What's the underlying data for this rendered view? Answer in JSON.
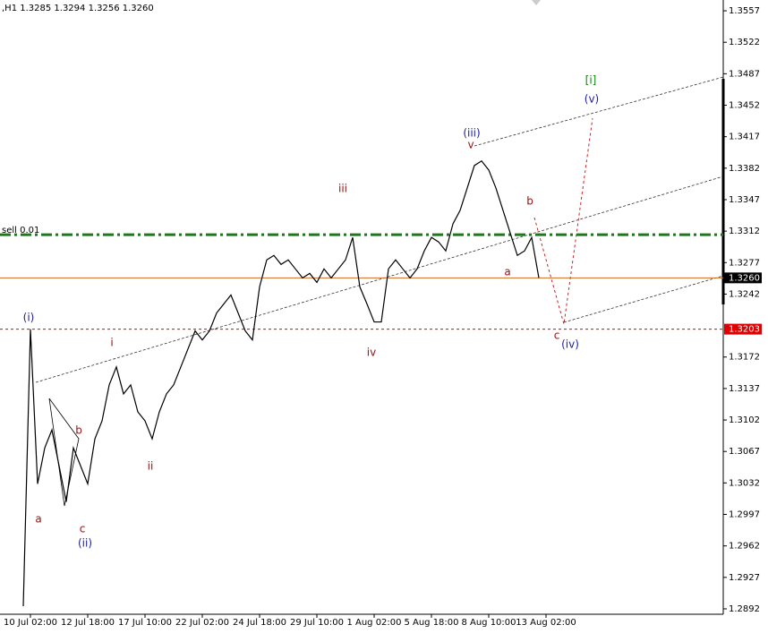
{
  "chart_data": {
    "type": "line",
    "header": ",H1  1.3285 1.3294 1.3256 1.3260",
    "categories": [
      null,
      null,
      null,
      null,
      "10 Jul 02:00",
      null,
      null,
      null,
      null,
      null,
      null,
      null,
      "12 Jul 18:00",
      null,
      null,
      null,
      null,
      null,
      null,
      null,
      "17 Jul 10:00",
      null,
      null,
      null,
      null,
      null,
      null,
      null,
      "22 Jul 02:00",
      null,
      null,
      null,
      null,
      null,
      null,
      null,
      "24 Jul 18:00",
      null,
      null,
      null,
      null,
      null,
      null,
      null,
      "29 Jul 10:00",
      null,
      null,
      null,
      null,
      null,
      null,
      null,
      "1 Aug 02:00",
      null,
      null,
      null,
      null,
      null,
      null,
      null,
      "5 Aug 18:00",
      null,
      null,
      null,
      null,
      null,
      null,
      null,
      "8 Aug 10:00",
      null,
      null,
      null,
      null,
      null,
      null,
      null,
      "13 Aug 02:00",
      null,
      null,
      null,
      null,
      null,
      null,
      null,
      null,
      null,
      null,
      null,
      null,
      null,
      null,
      null,
      null,
      null,
      null,
      null,
      null,
      null,
      null,
      null,
      null
    ],
    "series": [
      {
        "color": "#000000",
        "values": [
          null,
          null,
          null,
          1.2895,
          1.3203,
          1.3031,
          1.3071,
          1.3091,
          1.3051,
          1.3011,
          1.3071,
          1.3051,
          1.3031,
          1.3081,
          1.3101,
          1.3141,
          1.3161,
          1.3131,
          1.3141,
          1.3111,
          1.3101,
          1.3081,
          1.3111,
          1.3131,
          1.3141,
          1.3161,
          1.3181,
          1.3201,
          1.3191,
          1.3201,
          1.3221,
          1.3231,
          1.3241,
          1.3221,
          1.3201,
          1.3191,
          1.325,
          1.328,
          1.3285,
          1.3275,
          1.328,
          1.327,
          1.326,
          1.3265,
          1.3255,
          1.327,
          1.326,
          1.327,
          1.328,
          1.3305,
          1.325,
          1.3231,
          1.3211,
          1.3211,
          1.327,
          1.328,
          1.327,
          1.326,
          1.327,
          1.329,
          1.3305,
          1.33,
          1.329,
          1.332,
          1.3335,
          1.336,
          1.3385,
          1.339,
          1.338,
          1.336,
          1.3335,
          1.331,
          1.3285,
          1.329,
          1.3305,
          1.326,
          null,
          null,
          null,
          null,
          null,
          null,
          null,
          null,
          null,
          null,
          null,
          null,
          null,
          null,
          null,
          null,
          null,
          null,
          null,
          null,
          null,
          null,
          null,
          null,
          null
        ]
      }
    ],
    "ylim": [
      1.2886,
      1.3569
    ],
    "yticks": [
      1.3557,
      1.3522,
      1.3487,
      1.3452,
      1.3417,
      1.3382,
      1.3347,
      1.3312,
      1.3277,
      1.3242,
      1.3172,
      1.3137,
      1.3102,
      1.3067,
      1.3032,
      1.2997,
      1.2962,
      1.2927,
      1.2892
    ],
    "grid": false,
    "sell_level": {
      "label": "sell 0.01",
      "value": 1.3308,
      "color": "#1a7a1a"
    },
    "current_price": {
      "value": 1.326,
      "label": "1.3260",
      "color": "#d2691e"
    },
    "alert_price": {
      "value": 1.3203,
      "label": "1.3203",
      "color": "#e00000"
    },
    "annotations": [
      {
        "text": "(i)",
        "color": "#1c1ca8"
      },
      {
        "text": "a",
        "color": "#a01010"
      },
      {
        "text": "b",
        "color": "#a01010"
      },
      {
        "text": "c",
        "color": "#a01010"
      },
      {
        "text": "(ii)",
        "color": "#1c1ca8"
      },
      {
        "text": "i",
        "color": "#a01010"
      },
      {
        "text": "ii",
        "color": "#a01010"
      },
      {
        "text": "iii",
        "color": "#a01010"
      },
      {
        "text": "iv",
        "color": "#a01010"
      },
      {
        "text": "v",
        "color": "#a01010"
      },
      {
        "text": "(iii)",
        "color": "#1c1ca8"
      },
      {
        "text": "a",
        "color": "#a01010"
      },
      {
        "text": "b",
        "color": "#a01010"
      },
      {
        "text": "c",
        "color": "#a01010"
      },
      {
        "text": "(iv)",
        "color": "#1c1ca8"
      },
      {
        "text": "(v)",
        "color": "#1c1ca8"
      },
      {
        "text": "[i]",
        "color": "#118811"
      }
    ]
  }
}
